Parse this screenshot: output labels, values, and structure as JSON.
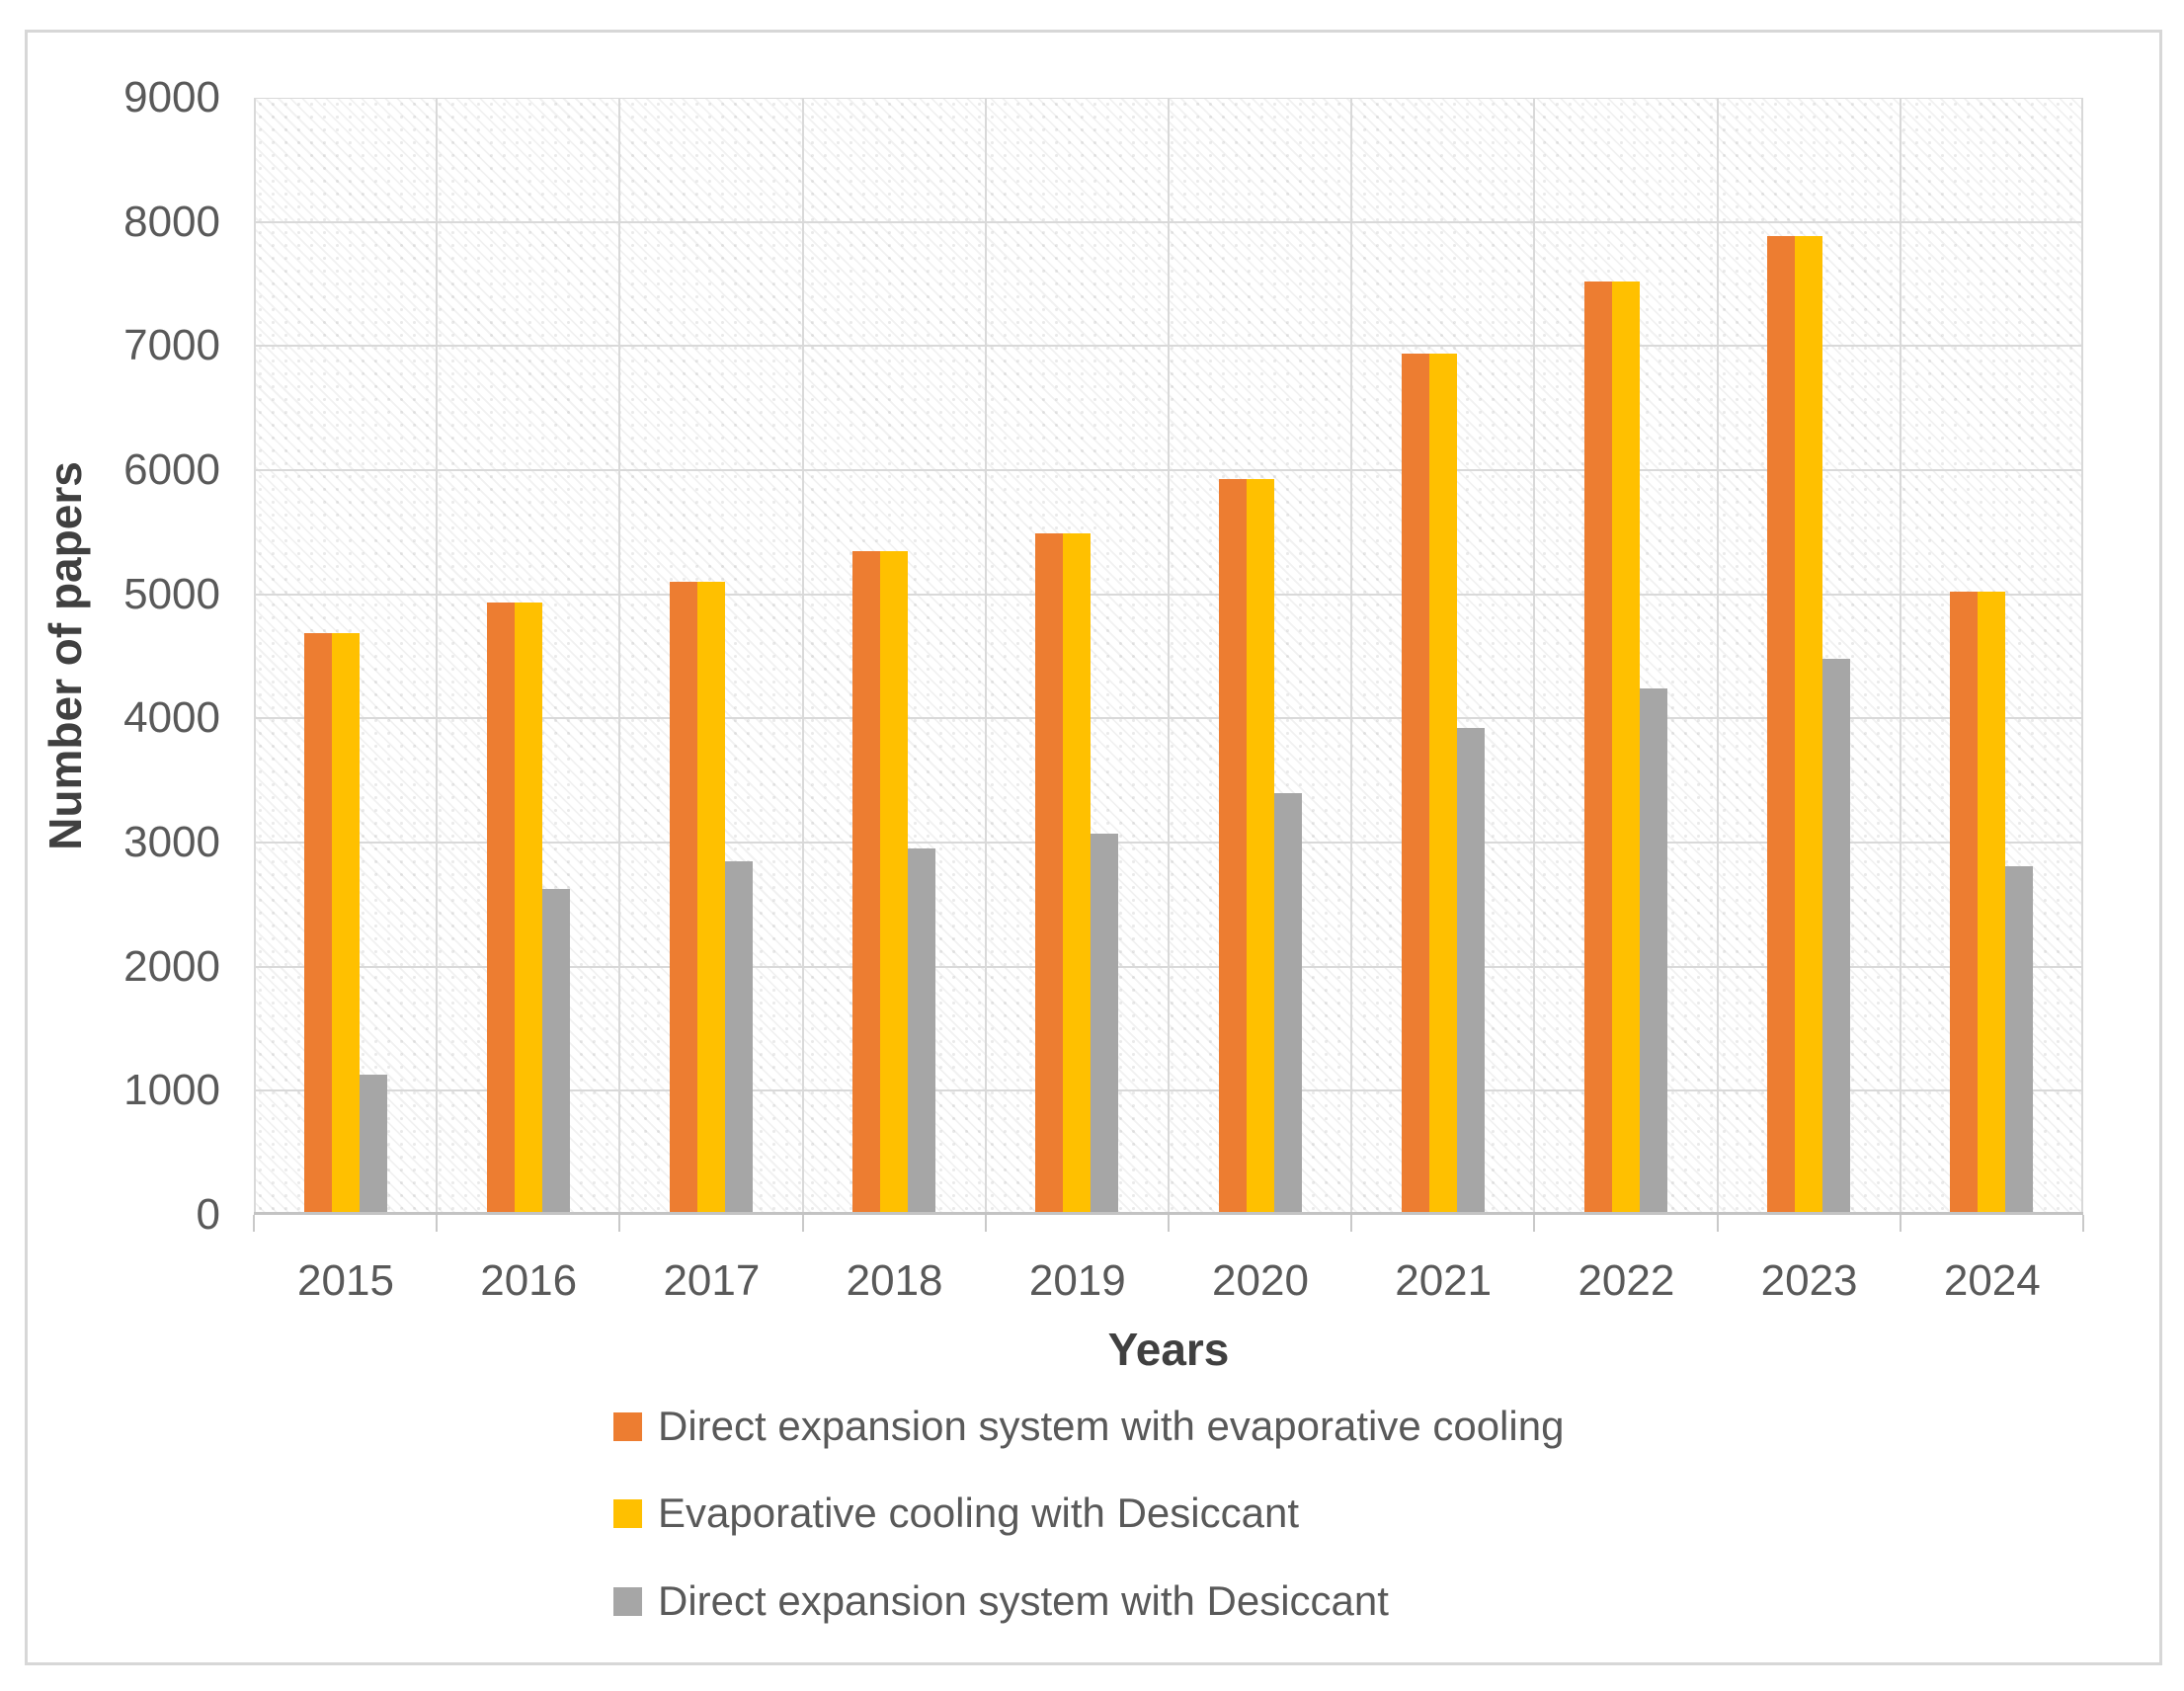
{
  "chart_data": {
    "type": "bar",
    "title": "",
    "xlabel": "Years",
    "ylabel": "Number of papers",
    "categories": [
      "2015",
      "2016",
      "2017",
      "2018",
      "2019",
      "2020",
      "2021",
      "2022",
      "2023",
      "2024"
    ],
    "series": [
      {
        "name": "Direct expansion system with evaporative cooling",
        "color": "#ED7D31",
        "values": [
          4690,
          4930,
          5100,
          5350,
          5490,
          5930,
          6940,
          7520,
          7890,
          5020
        ]
      },
      {
        "name": "Evaporative cooling with Desiccant",
        "color": "#FFC000",
        "values": [
          4690,
          4930,
          5100,
          5350,
          5490,
          5930,
          6940,
          7520,
          7890,
          5020
        ]
      },
      {
        "name": "Direct expansion system with Desiccant",
        "color": "#A6A6A6",
        "values": [
          1130,
          2630,
          2850,
          2950,
          3070,
          3400,
          3920,
          4240,
          4480,
          2810
        ]
      }
    ],
    "ylim": [
      0,
      9000
    ],
    "ytick_step": 1000,
    "y_ticks": [
      "0",
      "1000",
      "2000",
      "3000",
      "4000",
      "5000",
      "6000",
      "7000",
      "8000",
      "9000"
    ],
    "grid": true,
    "legend_position": "bottom-left"
  },
  "colors": {
    "gridline": "#D9D9D9",
    "axis_line": "#C3C3C3",
    "tick_text": "#595959",
    "title_text": "#404040",
    "frame_border": "#D7D7D7",
    "background": "#FFFFFF"
  }
}
